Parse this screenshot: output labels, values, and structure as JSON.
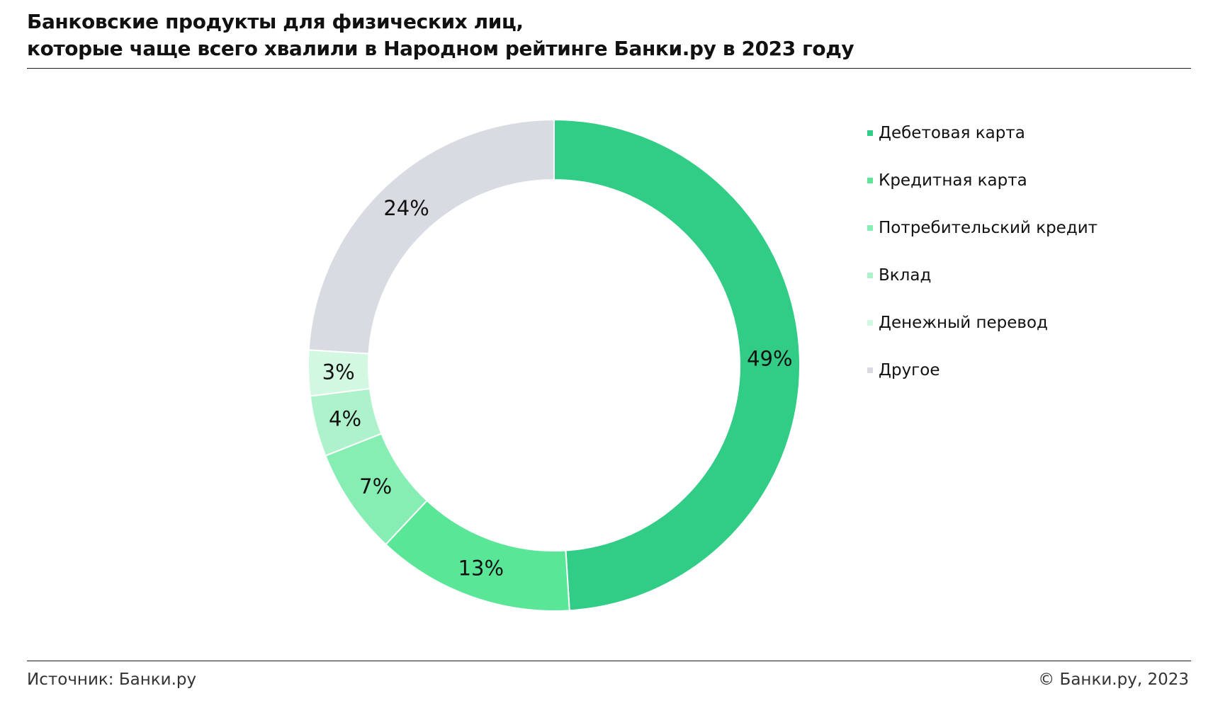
{
  "header": {
    "title_line1": "Банковские продукты для физических лиц,",
    "title_line2": "которые чаще всего хвалили в Народном рейтинге Банки.ру в 2023 году"
  },
  "chart_data": {
    "type": "pie",
    "variant": "donut",
    "unit": "%",
    "categories": [
      "Дебетовая карта",
      "Кредитная карта",
      "Потребительский кредит",
      "Вклад",
      "Денежный перевод",
      "Другое"
    ],
    "values": [
      49,
      13,
      7,
      4,
      3,
      24
    ],
    "labels": [
      "49%",
      "13%",
      "7%",
      "4%",
      "3%",
      "24%"
    ],
    "colors": [
      "#31cc85",
      "#5ae697",
      "#86edb3",
      "#aef2cb",
      "#d2f8e2",
      "#d8dbe1"
    ],
    "start": "top",
    "direction": "clockwise",
    "legend_position": "right"
  },
  "footer": {
    "source": "Источник: Банки.ру",
    "copyright": "© Банки.ру, 2023"
  }
}
